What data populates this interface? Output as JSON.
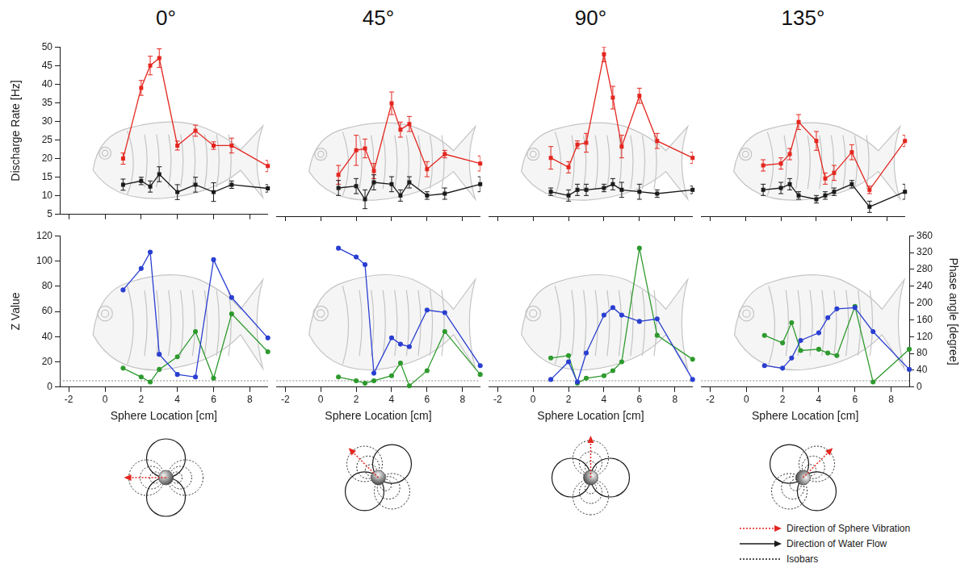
{
  "chart_data": [
    {
      "type": "line",
      "title": "0°",
      "y_label": "Discharge Rate [Hz]",
      "tick_labels": "y",
      "grid": false,
      "x": [
        1,
        2,
        2.5,
        3,
        4,
        5,
        6,
        7,
        9
      ],
      "series": [
        {
          "color": "#e3261f",
          "marker": "square",
          "values": [
            20,
            39,
            45,
            47,
            23.5,
            27.5,
            23.5,
            23.5,
            18
          ],
          "errors": [
            1.5,
            2,
            2.5,
            2.5,
            1.2,
            1.5,
            1,
            2,
            1.5
          ]
        },
        {
          "color": "#1a1a1a",
          "marker": "square",
          "values": [
            13,
            14,
            12.5,
            15.8,
            11,
            13,
            11,
            13,
            12
          ],
          "errors": [
            1.5,
            1,
            1.5,
            2,
            2,
            2,
            2.5,
            1,
            1
          ]
        }
      ],
      "xlim": [
        -2.5,
        9
      ],
      "xticks": [
        -2,
        0,
        2,
        4,
        6,
        8
      ],
      "ylim": [
        5,
        50
      ],
      "yticks": [
        5,
        10,
        15,
        20,
        25,
        30,
        35,
        40,
        45,
        50
      ]
    },
    {
      "type": "line",
      "title": "45°",
      "tick_labels": false,
      "grid": false,
      "x": [
        1,
        2,
        2.5,
        3,
        4,
        4.5,
        5,
        6,
        7,
        9
      ],
      "series": [
        {
          "color": "#e3261f",
          "marker": "square",
          "values": [
            16,
            22.5,
            23,
            17,
            35,
            28,
            29.5,
            17.5,
            21.5,
            19
          ],
          "errors": [
            2.5,
            4,
            2.5,
            2,
            3,
            2,
            2,
            2,
            1,
            2
          ]
        },
        {
          "color": "#1a1a1a",
          "marker": "square",
          "values": [
            12.5,
            13,
            9.5,
            14,
            13.5,
            10.5,
            14,
            10.5,
            11,
            13.5
          ],
          "errors": [
            2,
            2,
            2.5,
            2,
            2,
            1.5,
            1.5,
            1,
            1.5,
            2
          ]
        }
      ],
      "xlim": [
        -2.5,
        9
      ],
      "xticks": [
        -2,
        0,
        2,
        4,
        6,
        8
      ],
      "ylim": [
        5,
        50
      ]
    },
    {
      "type": "line",
      "title": "90°",
      "tick_labels": false,
      "grid": false,
      "x": [
        1,
        2,
        2.5,
        3,
        4,
        4.5,
        5,
        6,
        7,
        9
      ],
      "series": [
        {
          "color": "#e3261f",
          "marker": "square",
          "values": [
            20.5,
            18,
            24,
            24.5,
            48,
            36.5,
            23.5,
            37,
            25,
            20.5
          ],
          "errors": [
            3,
            1.5,
            1,
            2.5,
            2,
            3,
            3,
            2,
            2,
            1.5
          ]
        },
        {
          "color": "#1a1a1a",
          "marker": "square",
          "values": [
            11.5,
            10.5,
            12,
            12,
            12.5,
            13.5,
            12,
            11.5,
            11,
            12
          ],
          "errors": [
            1,
            1.5,
            1.5,
            1.5,
            1,
            1.5,
            2,
            2,
            1,
            1
          ]
        }
      ],
      "xlim": [
        -2.5,
        9
      ],
      "xticks": [
        -2,
        0,
        2,
        4,
        6,
        8
      ],
      "ylim": [
        5,
        50
      ]
    },
    {
      "type": "line",
      "title": "135°",
      "tick_labels": false,
      "grid": false,
      "x": [
        1,
        2,
        2.5,
        3,
        4,
        4.5,
        5,
        6,
        7,
        9
      ],
      "series": [
        {
          "color": "#e3261f",
          "marker": "square",
          "values": [
            18.5,
            19,
            21.5,
            30,
            25,
            15,
            16.5,
            22,
            12,
            25
          ],
          "errors": [
            1.5,
            1.5,
            1.5,
            2,
            2.5,
            1.5,
            2,
            2,
            1,
            1.5
          ]
        },
        {
          "color": "#1a1a1a",
          "marker": "square",
          "values": [
            12,
            12.5,
            13.5,
            10.5,
            9.5,
            10.5,
            11.5,
            13.5,
            7.5,
            11.5
          ],
          "errors": [
            1.5,
            1.5,
            1.5,
            1,
            1,
            1,
            1,
            1,
            1.5,
            2
          ]
        }
      ],
      "xlim": [
        -2.5,
        9
      ],
      "xticks": [
        -2,
        0,
        2,
        4,
        6,
        8
      ],
      "ylim": [
        5,
        50
      ]
    },
    {
      "type": "line",
      "x_label": "Sphere Location [cm]",
      "y_label": "Z Value",
      "grid": false,
      "x": [
        1,
        2,
        2.5,
        3,
        4,
        5,
        6,
        7,
        9
      ],
      "series": [
        {
          "color": "#2a3fd1",
          "marker": "circle",
          "values": [
            77,
            94,
            107,
            26,
            10,
            8,
            101,
            71,
            39
          ]
        },
        {
          "color": "#2e9a2e",
          "marker": "circle",
          "axis": "y2",
          "values": [
            45,
            24,
            12,
            42,
            72,
            132,
            21,
            174,
            84
          ]
        }
      ],
      "threshold": 5,
      "xlim": [
        -2.5,
        9
      ],
      "xticks": [
        -2,
        0,
        2,
        4,
        6,
        8
      ],
      "ylim": [
        0,
        120
      ],
      "yticks": [
        0,
        20,
        40,
        60,
        80,
        100,
        120
      ],
      "y2lim": [
        0,
        360
      ]
    },
    {
      "type": "line",
      "x_label": "Sphere Location [cm]",
      "grid": false,
      "x": [
        1,
        2,
        2.5,
        3,
        4,
        4.5,
        5,
        6,
        7,
        9
      ],
      "series": [
        {
          "color": "#2a3fd1",
          "marker": "circle",
          "values": [
            110,
            103,
            97,
            11,
            39,
            34,
            32,
            61,
            59,
            17
          ]
        },
        {
          "color": "#2e9a2e",
          "marker": "circle",
          "axis": "y2",
          "values": [
            24,
            15,
            9,
            15,
            27,
            57,
            3,
            39,
            132,
            30
          ]
        }
      ],
      "threshold": 5,
      "xlim": [
        -2.5,
        9
      ],
      "xticks": [
        -2,
        0,
        2,
        4,
        6,
        8
      ],
      "ylim": [
        0,
        120
      ],
      "y2lim": [
        0,
        360
      ]
    },
    {
      "type": "line",
      "x_label": "Sphere Location [cm]",
      "grid": false,
      "x": [
        1,
        2,
        2.5,
        3,
        4,
        4.5,
        5,
        6,
        7,
        9
      ],
      "series": [
        {
          "color": "#2a3fd1",
          "marker": "circle",
          "values": [
            6,
            20,
            4,
            27,
            57,
            63,
            57,
            52,
            54,
            6
          ]
        },
        {
          "color": "#2e9a2e",
          "marker": "circle",
          "axis": "y2",
          "values": [
            69,
            75,
            9,
            21,
            27,
            39,
            60,
            330,
            123,
            66
          ]
        }
      ],
      "threshold": 5,
      "xlim": [
        -2.5,
        9
      ],
      "xticks": [
        -2,
        0,
        2,
        4,
        6,
        8
      ],
      "ylim": [
        0,
        120
      ],
      "y2lim": [
        0,
        360
      ]
    },
    {
      "type": "line",
      "x_label": "Sphere Location [cm]",
      "y2_label": "Phase angle [degree]",
      "grid": false,
      "x": [
        1,
        2,
        2.5,
        3,
        4,
        4.5,
        5,
        6,
        7,
        9
      ],
      "series": [
        {
          "color": "#2a3fd1",
          "marker": "circle",
          "values": [
            17,
            15,
            23,
            37,
            43,
            55,
            62,
            63,
            44,
            14
          ]
        },
        {
          "color": "#2e9a2e",
          "marker": "circle",
          "axis": "y2",
          "values": [
            123,
            105,
            153,
            87,
            90,
            81,
            75,
            192,
            12,
            90
          ]
        }
      ],
      "threshold": 5,
      "xlim": [
        -2.5,
        9
      ],
      "xticks": [
        -2,
        0,
        2,
        4,
        6,
        8
      ],
      "ylim": [
        0,
        120
      ],
      "y2lim": [
        0,
        360
      ],
      "y2ticks": [
        0,
        40,
        80,
        120,
        160,
        200,
        240,
        280,
        320,
        360
      ]
    }
  ],
  "diagram_key": [
    {
      "label": "Direction of Sphere Vibration",
      "color": "#e3261f",
      "line_style": "dotted",
      "marker": "arrow"
    },
    {
      "label": "Direction of Water Flow",
      "color": "#1a1a1a",
      "line_style": "solid",
      "marker": "arrow"
    },
    {
      "label": "Isobars",
      "color": "#1a1a1a",
      "line_style": "dotted"
    }
  ]
}
